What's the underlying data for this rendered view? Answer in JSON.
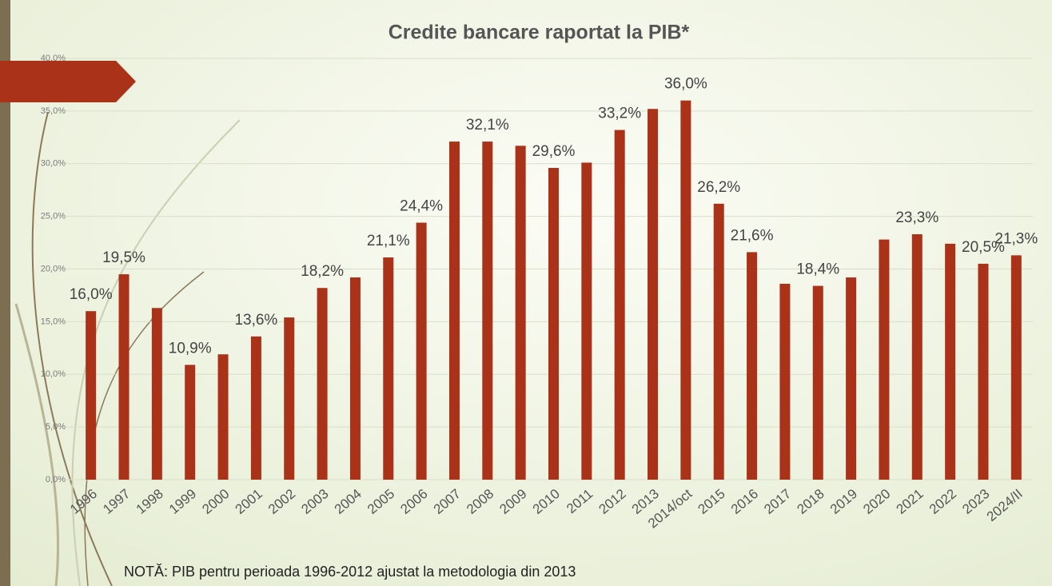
{
  "chart_data": {
    "type": "bar",
    "title": "Credite bancare raportat la PIB*",
    "note": "NOTĂ: PIB pentru perioada 1996-2012 ajustat la metodologia din 2013",
    "categories": [
      "1996",
      "1997",
      "1998",
      "1999",
      "2000",
      "2001",
      "2002",
      "2003",
      "2004",
      "2005",
      "2006",
      "2007",
      "2008",
      "2009",
      "2010",
      "2011",
      "2012",
      "2013",
      "2014/oct",
      "2015",
      "2016",
      "2017",
      "2018",
      "2019",
      "2020",
      "2021",
      "2022",
      "2023",
      "2024/II"
    ],
    "values": [
      16.0,
      19.5,
      16.3,
      10.9,
      11.9,
      13.6,
      15.4,
      18.2,
      19.2,
      21.1,
      24.4,
      32.1,
      32.1,
      31.7,
      29.6,
      30.1,
      33.2,
      35.2,
      36.0,
      26.2,
      21.6,
      18.6,
      18.4,
      19.2,
      22.8,
      23.3,
      22.4,
      20.5,
      21.3
    ],
    "value_labels": [
      "16,0%",
      "19,5%",
      null,
      "10,9%",
      null,
      "13,6%",
      null,
      "18,2%",
      null,
      "21,1%",
      "24,4%",
      null,
      "32,1%",
      null,
      "29,6%",
      null,
      "33,2%",
      null,
      "36,0%",
      "26,2%",
      "21,6%",
      null,
      "18,4%",
      null,
      null,
      "23,3%",
      null,
      "20,5%",
      "21,3%"
    ],
    "color": "#a93218",
    "ylim": [
      0,
      40
    ],
    "yticks": [
      {
        "value": 0,
        "label": "0,0%"
      },
      {
        "value": 5,
        "label": "5,0%"
      },
      {
        "value": 10,
        "label": "10,0%"
      },
      {
        "value": 15,
        "label": "15,0%"
      },
      {
        "value": 20,
        "label": "20,0%"
      },
      {
        "value": 25,
        "label": "25,0%"
      },
      {
        "value": 30,
        "label": "30,0%"
      },
      {
        "value": 35,
        "label": "35,0%"
      },
      {
        "value": 40,
        "label": "40,0%"
      }
    ],
    "grid": true
  }
}
